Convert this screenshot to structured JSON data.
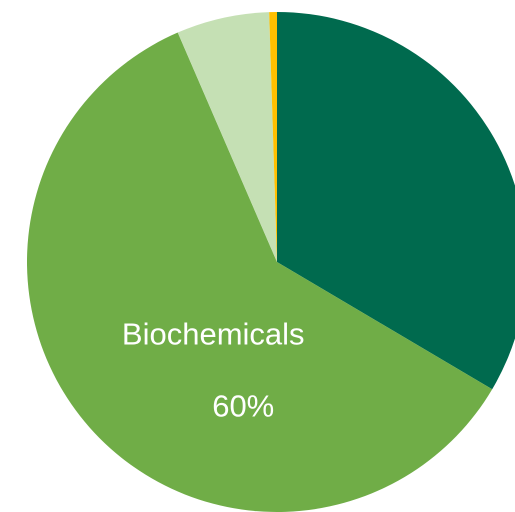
{
  "chart_data": {
    "type": "pie",
    "categories": [
      null,
      "Biochemicals",
      null,
      null
    ],
    "values": [
      33.5,
      60,
      6,
      0.5
    ],
    "value_labels": [
      null,
      "60%",
      null,
      null
    ],
    "colors": [
      "#006a4e",
      "#70ad47",
      "#c5e0b4",
      "#ffc000"
    ]
  }
}
